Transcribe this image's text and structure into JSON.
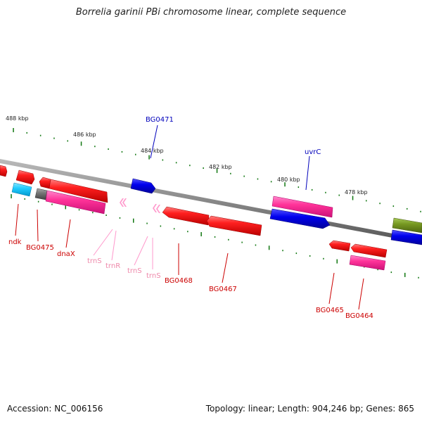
{
  "title": "Borrelia garinii PBi chromosome linear, complete sequence",
  "footer": {
    "accession": "Accession: NC_006156",
    "summary": "Topology: linear; Length: 904,246 bp; Genes: 865"
  },
  "scale_ticks": [
    "488 kbp",
    "486 kbp",
    "484 kbp",
    "482 kbp",
    "480 kbp",
    "478 kbp"
  ],
  "genes": {
    "above": [
      "BG0471",
      "uvrC"
    ],
    "below": [
      "ndk",
      "BG0475",
      "dnaX",
      "trnS",
      "trnR",
      "trnS",
      "trnS",
      "BG0468",
      "BG0467",
      "BG0465",
      "BG0464"
    ]
  },
  "colors": {
    "cds": "#ff0000",
    "cds_label": "#cc0000",
    "cog": "#ff3399",
    "blue": "#0000dd",
    "blue_label": "#0000bb",
    "trna": "#ff99cc",
    "trna_label": "#ee88aa",
    "cyan": "#22ccff",
    "olive": "#779922",
    "grey": "#777777",
    "backbone": "#888888",
    "tick": "#117711"
  }
}
